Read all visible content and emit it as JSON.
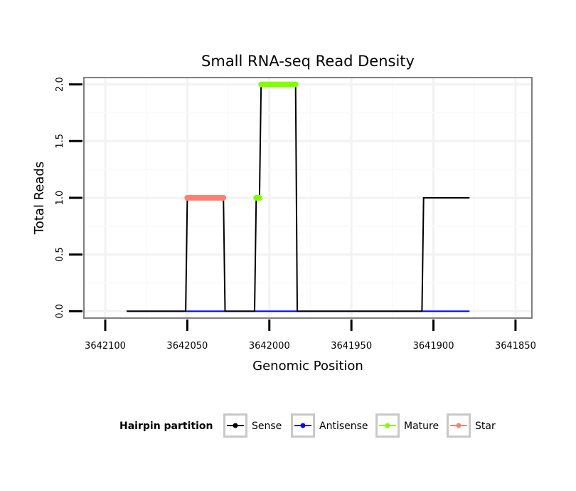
{
  "chart_data": {
    "type": "line",
    "title": "Small RNA-seq Read Density",
    "xlabel": "Genomic Position",
    "ylabel": "Total Reads",
    "xlim": [
      3642113,
      3641840
    ],
    "ylim": [
      -0.06,
      2.06
    ],
    "x_reversed": true,
    "x_ticks": [
      3642100,
      3642050,
      3642000,
      3641950,
      3641900,
      3641850
    ],
    "x_tick_labels": [
      "3642100",
      "3642050",
      "3642000",
      "3641950",
      "3641900",
      "3641850"
    ],
    "y_ticks": [
      0,
      0.5,
      1,
      1.5,
      2
    ],
    "y_tick_labels": [
      "0.0",
      "0.5",
      "1.0",
      "1.5",
      "2.0"
    ],
    "grid": true,
    "legend": {
      "title": "Hairpin partition",
      "position": "bottom",
      "entries": [
        {
          "name": "Sense",
          "color": "#000000"
        },
        {
          "name": "Antisense",
          "color": "#0000ff"
        },
        {
          "name": "Mature",
          "color": "#7fff00"
        },
        {
          "name": "Star",
          "color": "#fa8072"
        }
      ]
    },
    "series": [
      {
        "name": "Sense",
        "color": "#000000",
        "kind": "line",
        "x": [
          3642087,
          3642051,
          3642050,
          3642028,
          3642027,
          3642009,
          3642008,
          3642006,
          3642005,
          3641984,
          3641983,
          3641907,
          3641906,
          3641878
        ],
        "y": [
          0,
          0,
          1,
          1,
          0,
          0,
          1,
          1,
          2,
          2,
          0,
          0,
          1,
          1
        ]
      },
      {
        "name": "Antisense",
        "color": "#0000ff",
        "kind": "line",
        "x": [
          3642087,
          3641878
        ],
        "y": [
          0,
          0
        ]
      },
      {
        "name": "Star",
        "color": "#fa8072",
        "kind": "points",
        "x": [
          3642050,
          3642049,
          3642048,
          3642047,
          3642046,
          3642045,
          3642044,
          3642043,
          3642042,
          3642041,
          3642040,
          3642039,
          3642038,
          3642037,
          3642036,
          3642035,
          3642034,
          3642033,
          3642032,
          3642031,
          3642030,
          3642029,
          3642028
        ],
        "y": [
          1,
          1,
          1,
          1,
          1,
          1,
          1,
          1,
          1,
          1,
          1,
          1,
          1,
          1,
          1,
          1,
          1,
          1,
          1,
          1,
          1,
          1,
          1
        ]
      },
      {
        "name": "Mature",
        "color": "#7fff00",
        "kind": "points",
        "x": [
          3642008,
          3642007,
          3642006,
          3642005,
          3642004,
          3642003,
          3642002,
          3642001,
          3642000,
          3641999,
          3641998,
          3641997,
          3641996,
          3641995,
          3641994,
          3641993,
          3641992,
          3641991,
          3641990,
          3641989,
          3641988,
          3641987,
          3641986,
          3641985,
          3641984
        ],
        "y": [
          1,
          1,
          1,
          2,
          2,
          2,
          2,
          2,
          2,
          2,
          2,
          2,
          2,
          2,
          2,
          2,
          2,
          2,
          2,
          2,
          2,
          2,
          2,
          2,
          2
        ]
      }
    ]
  }
}
